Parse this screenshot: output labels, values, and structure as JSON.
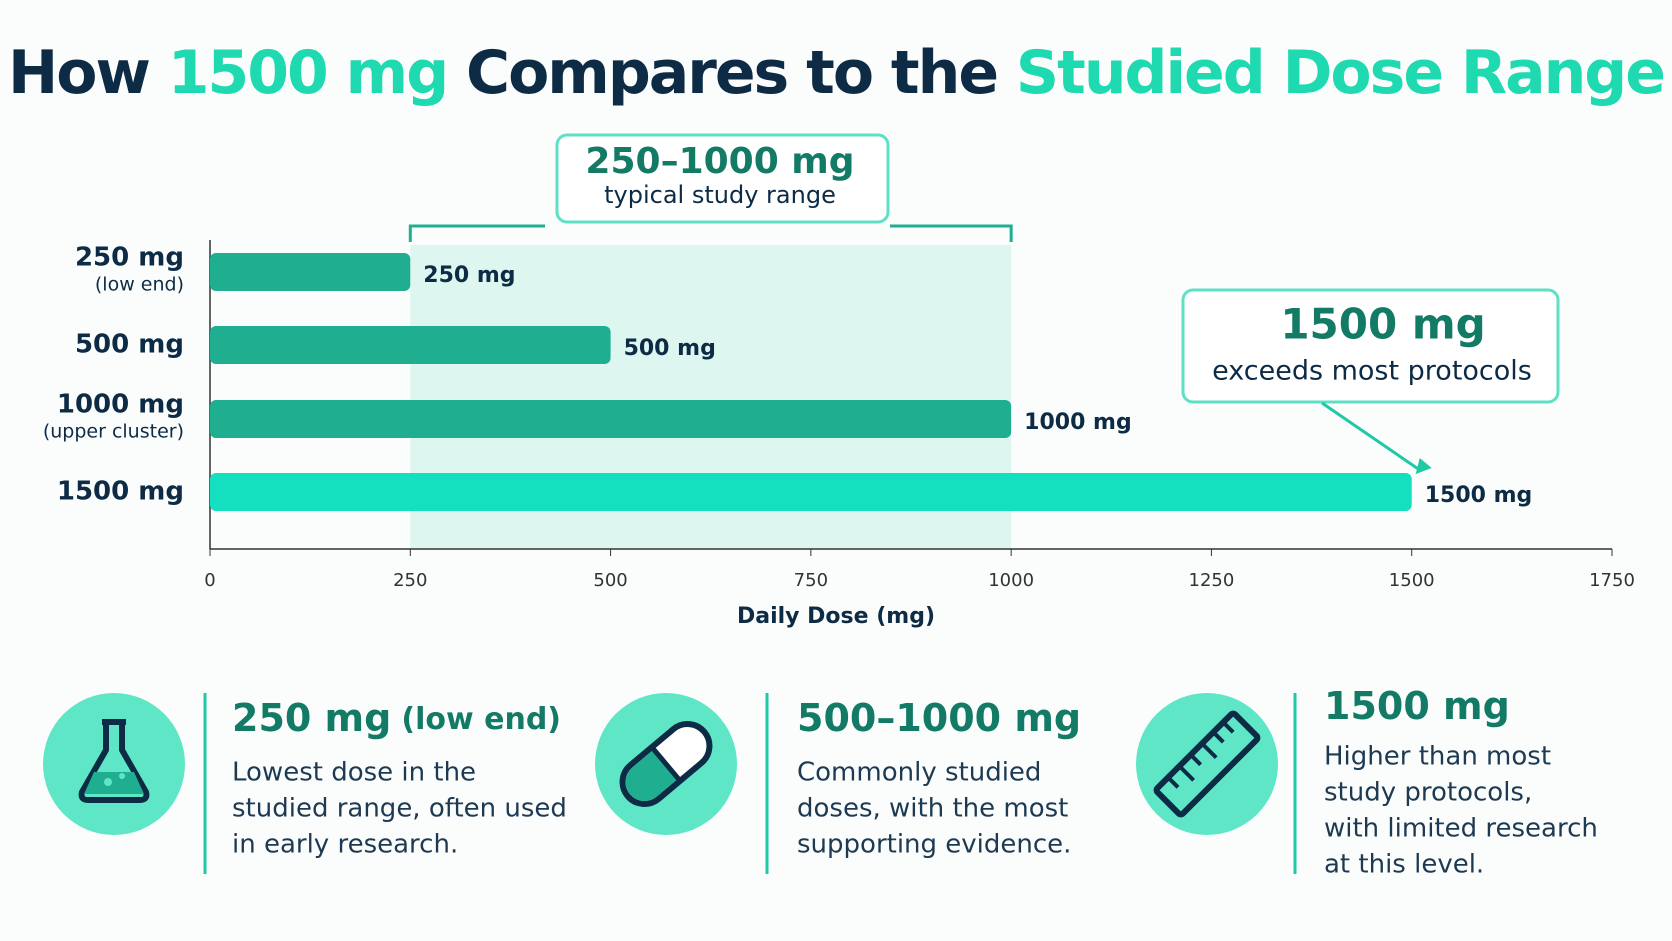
{
  "chart_data": {
    "type": "bar",
    "orientation": "horizontal",
    "title_parts": [
      {
        "text": "How ",
        "color": "#0d2b45"
      },
      {
        "text": "1500 mg",
        "color": "#1fd9b0"
      },
      {
        "text": " Compares to the ",
        "color": "#0d2b45"
      },
      {
        "text": "Studied Dose Range",
        "color": "#1fd9b0"
      }
    ],
    "categories": [
      "250 mg",
      "500 mg",
      "1000 mg",
      "1500 mg"
    ],
    "category_notes": [
      "(low end)",
      null,
      "(upper cluster)",
      null
    ],
    "values": [
      250,
      500,
      1000,
      1500
    ],
    "value_labels": [
      "250 mg",
      "500 mg",
      "1000 mg",
      "1500 mg"
    ],
    "colors": [
      "#1fae90",
      "#1fae90",
      "#1fae90",
      "#14e0c0"
    ],
    "xlim": [
      0,
      1750
    ],
    "xticks": [
      0,
      250,
      500,
      750,
      1000,
      1250,
      1500,
      1750
    ],
    "xlabel": "Daily Dose (mg)",
    "highlight_range": {
      "start": 250,
      "end": 1000,
      "label": "250–1000 mg",
      "sublabel": "typical study range",
      "color": "#ddf6ef"
    },
    "callout": {
      "value": 1500,
      "label": "1500 mg",
      "sublabel": "exceeds most protocols"
    }
  },
  "cards": [
    {
      "title": "250 mg",
      "title_note": "(low end)",
      "lines": [
        "Lowest dose in the",
        "studied range, often used",
        "in early research."
      ]
    },
    {
      "title": "500–1000 mg",
      "lines": [
        "Commonly studied",
        "doses, with the most",
        "supporting evidence."
      ]
    },
    {
      "title": "1500 mg",
      "lines": [
        "Higher than most",
        "study protocols,",
        "with limited research",
        "at this level."
      ]
    }
  ]
}
